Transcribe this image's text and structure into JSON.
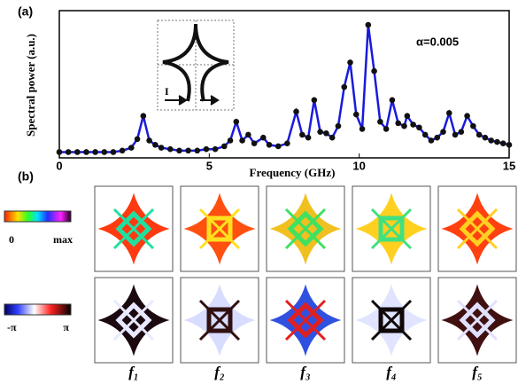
{
  "chart_data": {
    "type": "line",
    "panel_label": "(a)",
    "xlabel": "Frequency (GHz)",
    "ylabel": "Spectral power (a.u.)",
    "annotation": "α=0.005",
    "inset_label": "I",
    "xlim": [
      0,
      15
    ],
    "xticks": [
      0,
      5,
      10,
      15
    ],
    "ylim": [
      0,
      100
    ],
    "x": [
      0,
      0.3,
      0.6,
      0.9,
      1.2,
      1.5,
      1.8,
      2.1,
      2.4,
      2.6,
      2.8,
      3.0,
      3.2,
      3.4,
      3.7,
      4.0,
      4.3,
      4.6,
      4.9,
      5.2,
      5.5,
      5.7,
      5.9,
      6.1,
      6.3,
      6.5,
      6.8,
      7.0,
      7.3,
      7.6,
      7.9,
      8.1,
      8.3,
      8.5,
      8.7,
      8.9,
      9.1,
      9.3,
      9.5,
      9.7,
      9.9,
      10.1,
      10.3,
      10.5,
      10.7,
      10.9,
      11.1,
      11.3,
      11.5,
      11.6,
      11.8,
      12.0,
      12.2,
      12.4,
      12.6,
      12.8,
      13.0,
      13.2,
      13.4,
      13.6,
      13.8,
      14.0,
      14.2,
      14.4,
      14.6,
      14.8,
      15.0
    ],
    "series": [
      {
        "color": "#1a1adc",
        "marker_color": "#111111",
        "values": [
          4,
          4,
          4,
          4,
          4,
          4,
          4,
          5,
          7,
          13,
          29,
          12,
          9,
          7,
          6,
          5,
          5,
          5,
          6,
          6,
          8,
          12,
          25,
          12,
          16,
          10,
          14,
          9,
          8,
          10,
          32,
          16,
          14,
          40,
          18,
          17,
          14,
          22,
          49,
          66,
          30,
          20,
          92,
          60,
          25,
          20,
          40,
          24,
          22,
          29,
          23,
          21,
          16,
          12,
          14,
          18,
          31,
          16,
          18,
          29,
          22,
          16,
          14,
          12,
          11,
          10,
          9
        ]
      }
    ]
  },
  "panel_b": {
    "label": "(b)",
    "amplitude_bar": {
      "min": "0",
      "max": "max"
    },
    "phase_bar": {
      "min": "-π",
      "max": "π"
    },
    "mode_labels": [
      "f₁",
      "f₂",
      "f₃",
      "f₄",
      "f₅"
    ]
  }
}
